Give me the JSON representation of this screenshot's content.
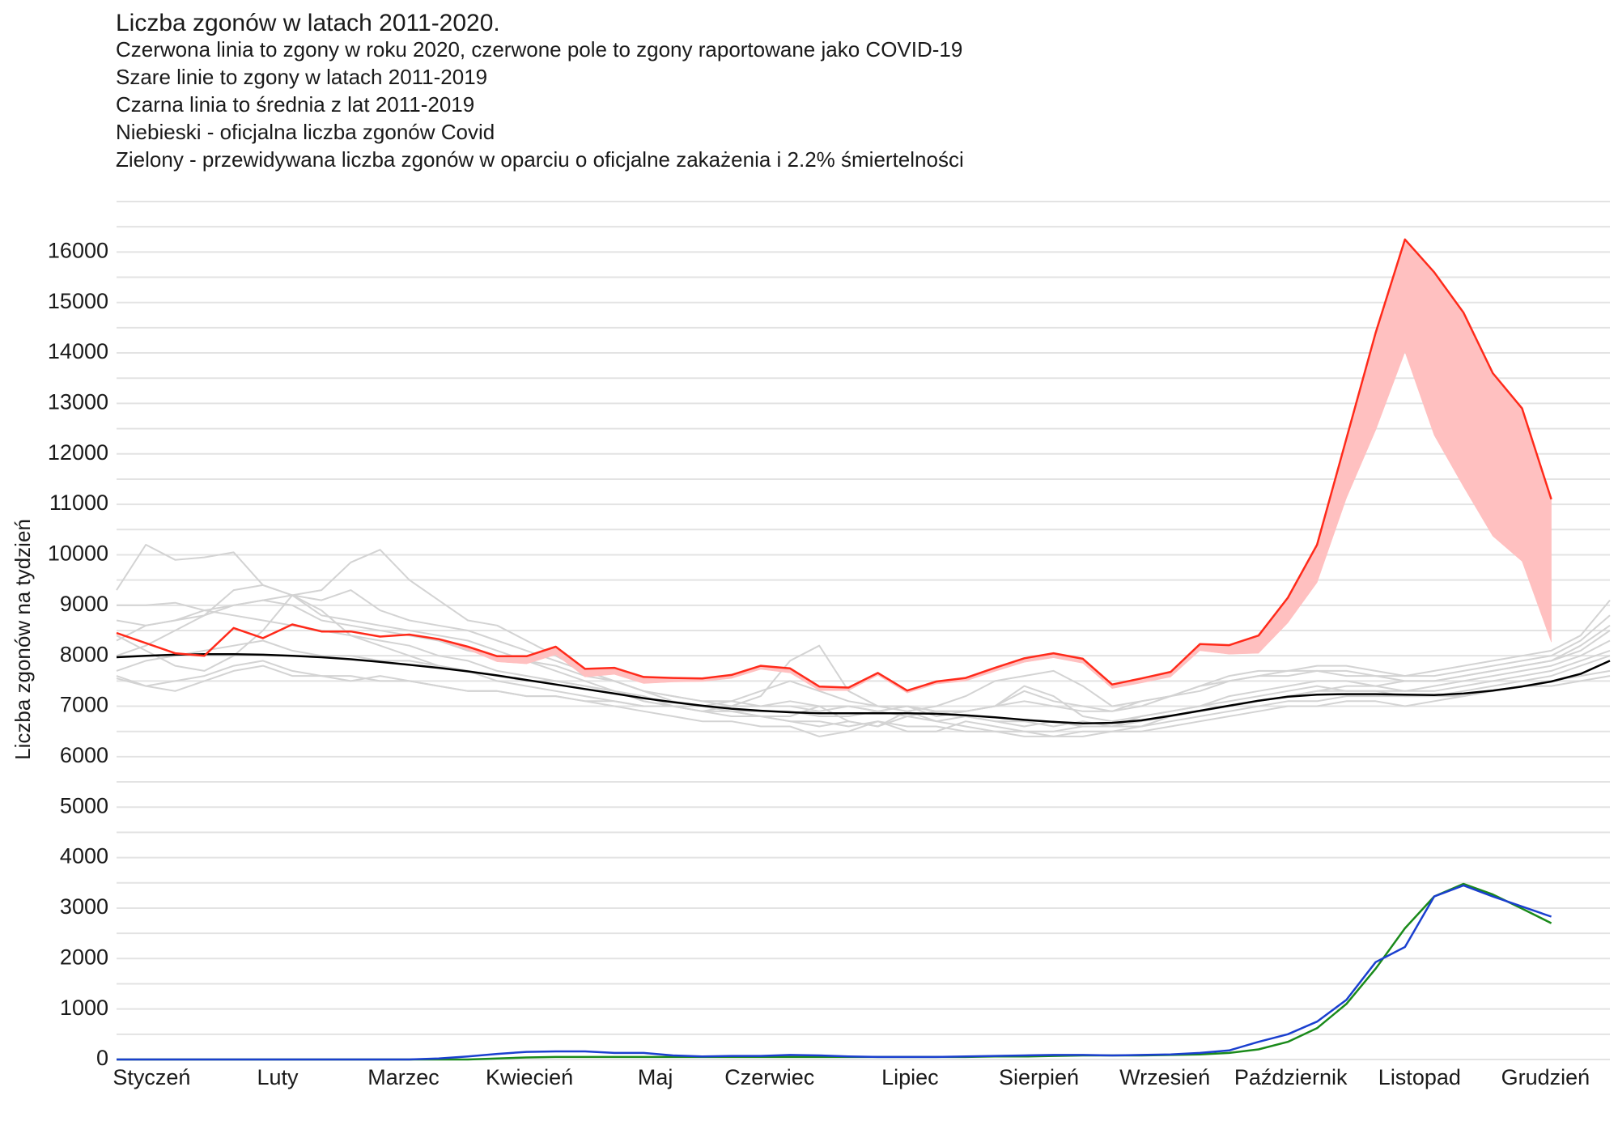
{
  "chart_data": {
    "type": "line",
    "title": "Liczba zgonów w latach 2011-2020.",
    "subtitle_lines": [
      "Czerwona linia to zgony w roku 2020, czerwone pole to zgony raportowane jako COVID-19",
      "Szare linie to zgony w latach 2011-2019",
      "Czarna linia to średnia z lat 2011-2019",
      "Niebieski - oficjalna liczba zgonów Covid",
      "Zielony - przewidywana liczba zgonów w oparciu o oficjalne zakażenia i 2.2% śmiertelności"
    ],
    "y_label": "Liczba zgonów na tydzień",
    "x": [
      1,
      2,
      3,
      4,
      5,
      6,
      7,
      8,
      9,
      10,
      11,
      12,
      13,
      14,
      15,
      16,
      17,
      18,
      19,
      20,
      21,
      22,
      23,
      24,
      25,
      26,
      27,
      28,
      29,
      30,
      31,
      32,
      33,
      34,
      35,
      36,
      37,
      38,
      39,
      40,
      41,
      42,
      43,
      44,
      45,
      46,
      47,
      48,
      49,
      50,
      51,
      52
    ],
    "xlim": [
      1,
      52
    ],
    "xticks": [
      {
        "value": 2.2,
        "label": "Styczeń"
      },
      {
        "value": 6.5,
        "label": "Luty"
      },
      {
        "value": 10.8,
        "label": "Marzec"
      },
      {
        "value": 15.1,
        "label": "Kwiecień"
      },
      {
        "value": 19.4,
        "label": "Maj"
      },
      {
        "value": 23.3,
        "label": "Czerwiec"
      },
      {
        "value": 28.1,
        "label": "Lipiec"
      },
      {
        "value": 32.5,
        "label": "Sierpień"
      },
      {
        "value": 36.8,
        "label": "Wrzesień"
      },
      {
        "value": 41.1,
        "label": "Październik"
      },
      {
        "value": 45.5,
        "label": "Listopad"
      },
      {
        "value": 49.8,
        "label": "Grudzień"
      }
    ],
    "ylim": [
      0,
      17000
    ],
    "yticks": [
      0,
      1000,
      2000,
      3000,
      4000,
      5000,
      6000,
      7000,
      8000,
      9000,
      10000,
      11000,
      12000,
      13000,
      14000,
      15000,
      16000
    ],
    "minor_yticks": [
      500,
      1500,
      2500,
      3500,
      4500,
      5500,
      6500,
      7500,
      8500,
      9500,
      10500,
      11500,
      12500,
      13500,
      14500,
      15500,
      16500,
      17000
    ],
    "grid": true,
    "grid_color": "#e3e3e3",
    "years_2011_2019": {
      "color": "#d3d3d3",
      "series": [
        [
          7550,
          7400,
          7500,
          7600,
          7800,
          7900,
          7700,
          7600,
          7600,
          7500,
          7500,
          7400,
          7300,
          7300,
          7200,
          7200,
          7100,
          7100,
          7000,
          7000,
          6900,
          6800,
          6800,
          6700,
          6700,
          6600,
          6700,
          6600,
          6600,
          6500,
          6500,
          6400,
          6400,
          6400,
          6500,
          6500,
          6600,
          6700,
          6800,
          6900,
          7000,
          7000,
          7100,
          7100,
          7000,
          7100,
          7200,
          7300,
          7400,
          7400,
          7500,
          7600
        ],
        [
          8400,
          8100,
          7800,
          7700,
          8000,
          8500,
          9200,
          8900,
          8400,
          8200,
          8000,
          7800,
          7700,
          7500,
          7400,
          7300,
          7200,
          7100,
          7000,
          7000,
          6900,
          6900,
          6800,
          6800,
          7000,
          6700,
          6600,
          6900,
          6700,
          6800,
          6700,
          6600,
          6700,
          6600,
          6600,
          6600,
          6800,
          6900,
          7000,
          7100,
          7200,
          7300,
          7300,
          7300,
          7200,
          7200,
          7300,
          7400,
          7500,
          7600,
          7800,
          8000
        ],
        [
          9300,
          10200,
          9900,
          9950,
          10050,
          9400,
          9200,
          8800,
          8700,
          8600,
          8500,
          8400,
          8300,
          8100,
          7900,
          7700,
          7500,
          7300,
          7200,
          7000,
          7000,
          6900,
          6800,
          6700,
          6600,
          6700,
          6600,
          6800,
          6700,
          6600,
          6500,
          6500,
          6500,
          6600,
          6600,
          6700,
          6800,
          6900,
          7000,
          7100,
          7200,
          7300,
          7400,
          7400,
          7300,
          7300,
          7400,
          7500,
          7600,
          7700,
          7900,
          8100
        ],
        [
          7600,
          7400,
          7300,
          7500,
          7700,
          7800,
          7600,
          7600,
          7500,
          7600,
          7500,
          7400,
          7300,
          7300,
          7200,
          7200,
          7100,
          7000,
          6900,
          6800,
          6700,
          6700,
          6600,
          6600,
          6400,
          6500,
          6700,
          6500,
          6500,
          6700,
          6600,
          6500,
          6400,
          6500,
          6500,
          6600,
          6700,
          6800,
          6900,
          7000,
          7100,
          7100,
          7200,
          7200,
          7200,
          7200,
          7200,
          7300,
          7400,
          7500,
          7600,
          7700
        ],
        [
          8300,
          8600,
          8700,
          8800,
          9000,
          9100,
          9200,
          9300,
          9850,
          10100,
          9500,
          9100,
          8700,
          8600,
          8300,
          8000,
          7700,
          7500,
          7300,
          7100,
          7000,
          6900,
          6900,
          6900,
          6800,
          6800,
          6900,
          7000,
          6900,
          6900,
          7000,
          7400,
          7200,
          6800,
          6700,
          6800,
          6900,
          7000,
          7100,
          7200,
          7300,
          7400,
          7300,
          7300,
          7300,
          7400,
          7500,
          7600,
          7700,
          7800,
          8000,
          8300
        ],
        [
          8700,
          8600,
          8700,
          8900,
          9000,
          9100,
          9000,
          8700,
          8600,
          8500,
          8400,
          8300,
          8100,
          8000,
          7900,
          7800,
          7600,
          7500,
          7300,
          7200,
          7100,
          7000,
          7000,
          7100,
          7000,
          7000,
          6900,
          6800,
          6900,
          6800,
          6700,
          6700,
          6600,
          6700,
          6600,
          6800,
          6900,
          7000,
          7200,
          7300,
          7400,
          7500,
          7500,
          7400,
          7500,
          7500,
          7600,
          7700,
          7800,
          7900,
          8100,
          8500
        ],
        [
          9000,
          9000,
          9050,
          8900,
          8800,
          8700,
          8600,
          8500,
          8400,
          8300,
          8200,
          8000,
          7900,
          7700,
          7600,
          7500,
          7400,
          7300,
          7100,
          7000,
          7000,
          7100,
          7300,
          7500,
          7300,
          7100,
          7000,
          7000,
          6800,
          6900,
          7000,
          7300,
          7100,
          7000,
          6900,
          7100,
          7200,
          7400,
          7500,
          7600,
          7600,
          7700,
          7700,
          7600,
          7500,
          7500,
          7600,
          7700,
          7800,
          7900,
          8200,
          8600
        ],
        [
          8000,
          8200,
          8500,
          8800,
          9300,
          9400,
          9200,
          9100,
          9300,
          8900,
          8700,
          8600,
          8500,
          8300,
          8100,
          7900,
          7700,
          7500,
          7300,
          7200,
          7100,
          7100,
          7000,
          7000,
          6900,
          7000,
          6900,
          7000,
          6900,
          6900,
          7000,
          7100,
          7000,
          6900,
          6900,
          7000,
          7200,
          7300,
          7500,
          7600,
          7700,
          7700,
          7600,
          7600,
          7600,
          7600,
          7700,
          7800,
          7900,
          8000,
          8300,
          8800
        ],
        [
          7700,
          7900,
          8000,
          8100,
          8200,
          8300,
          8100,
          8000,
          8000,
          7900,
          7900,
          7800,
          7700,
          7600,
          7500,
          7500,
          7400,
          7300,
          7100,
          7000,
          6900,
          7000,
          7200,
          7900,
          8200,
          7300,
          7000,
          6900,
          7000,
          7200,
          7500,
          7600,
          7700,
          7400,
          7000,
          7100,
          7200,
          7400,
          7600,
          7700,
          7700,
          7800,
          7800,
          7700,
          7600,
          7700,
          7800,
          7900,
          8000,
          8100,
          8400,
          9100
        ]
      ]
    },
    "average": {
      "color": "#000000",
      "values": [
        7970,
        8000,
        8020,
        8030,
        8030,
        8020,
        8000,
        7970,
        7930,
        7880,
        7820,
        7760,
        7690,
        7610,
        7520,
        7430,
        7340,
        7250,
        7160,
        7080,
        7010,
        6950,
        6910,
        6880,
        6860,
        6860,
        6860,
        6860,
        6850,
        6820,
        6780,
        6730,
        6690,
        6660,
        6670,
        6720,
        6810,
        6910,
        7010,
        7110,
        7190,
        7230,
        7240,
        7240,
        7230,
        7220,
        7250,
        7310,
        7390,
        7490,
        7640,
        7900
      ]
    },
    "deaths_2020": {
      "color": "#ff2a1a",
      "band_color": "#ffc0c0",
      "values": [
        8450,
        8250,
        8050,
        8000,
        8550,
        8350,
        8620,
        8480,
        8480,
        8380,
        8420,
        8330,
        8180,
        7990,
        7990,
        8180,
        7740,
        7760,
        7580,
        7560,
        7550,
        7620,
        7800,
        7750,
        7390,
        7370,
        7660,
        7310,
        7490,
        7560,
        7760,
        7950,
        8050,
        7940,
        7430,
        7550,
        7680,
        8230,
        8210,
        8400,
        9150,
        10200,
        12300,
        14400,
        16250,
        15600,
        14800,
        13600,
        12900,
        11100,
        null,
        null
      ]
    },
    "covid_official": {
      "color": "#1a3fcf",
      "values": [
        0,
        0,
        0,
        0,
        0,
        0,
        0,
        0,
        0,
        0,
        0,
        20,
        60,
        110,
        150,
        160,
        160,
        130,
        130,
        80,
        60,
        70,
        70,
        90,
        80,
        60,
        50,
        50,
        50,
        60,
        70,
        80,
        90,
        90,
        80,
        90,
        100,
        130,
        180,
        350,
        500,
        750,
        1180,
        1930,
        2230,
        3230,
        3450,
        3230,
        3030,
        2830,
        null,
        null
      ]
    },
    "covid_predicted": {
      "color": "#1a8a1a",
      "values": [
        0,
        0,
        0,
        0,
        0,
        0,
        0,
        0,
        0,
        0,
        0,
        0,
        0,
        20,
        40,
        50,
        50,
        50,
        50,
        50,
        50,
        50,
        50,
        50,
        50,
        50,
        50,
        50,
        50,
        50,
        60,
        60,
        70,
        80,
        80,
        80,
        90,
        100,
        130,
        200,
        350,
        620,
        1100,
        1800,
        2600,
        3230,
        3480,
        3270,
        2990,
        2700,
        null,
        null
      ]
    }
  }
}
